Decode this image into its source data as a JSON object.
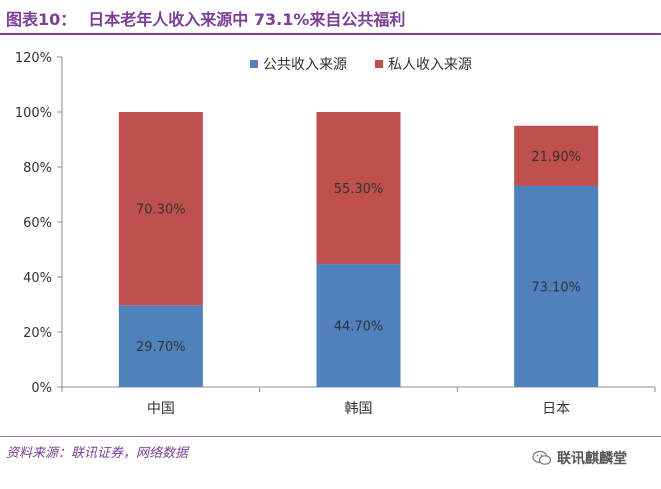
{
  "header": {
    "figure_number": "图表10：",
    "title": "日本老年人收入来源中 73.1%来自公共福利"
  },
  "footer": {
    "source": "资料来源：联讯证券，网络数据",
    "brand": "联讯麒麟堂",
    "brand_icon": "wechat-icon"
  },
  "chart_data": {
    "type": "bar",
    "stacked": true,
    "categories": [
      "中国",
      "韩国",
      "日本"
    ],
    "series": [
      {
        "name": "公共收入来源",
        "values": [
          29.7,
          44.7,
          73.1
        ],
        "labels": [
          "29.70%",
          "44.70%",
          "73.10%"
        ],
        "color": "#4f81bd"
      },
      {
        "name": "私人收入来源",
        "values": [
          70.3,
          55.3,
          21.9
        ],
        "labels": [
          "70.30%",
          "55.30%",
          "21.90%"
        ],
        "color": "#c0504d"
      }
    ],
    "ylim": [
      0,
      120
    ],
    "yticks": [
      "0%",
      "20%",
      "40%",
      "60%",
      "80%",
      "100%",
      "120%"
    ],
    "ytick_values": [
      0,
      20,
      40,
      60,
      80,
      100,
      120
    ],
    "legend_position": "top-right",
    "grid": false
  }
}
